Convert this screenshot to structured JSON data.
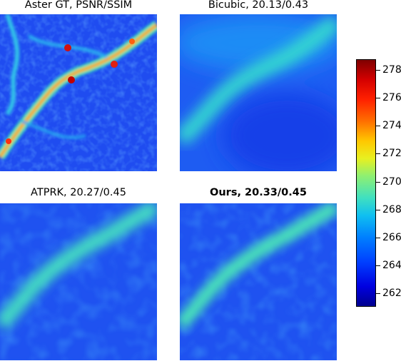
{
  "panels": [
    {
      "title": "Aster GT, PSNR/SSIM",
      "bold": false
    },
    {
      "title": "Bicubic, 20.13/0.43",
      "bold": false
    },
    {
      "title": "ATPRK, 20.27/0.45",
      "bold": false
    },
    {
      "title": "Ours, 20.33/0.45",
      "bold": true
    }
  ],
  "colorbar": {
    "colormap": "jet",
    "ticks": [
      "278",
      "276",
      "274",
      "272",
      "270",
      "268",
      "266",
      "264",
      "262"
    ]
  }
}
